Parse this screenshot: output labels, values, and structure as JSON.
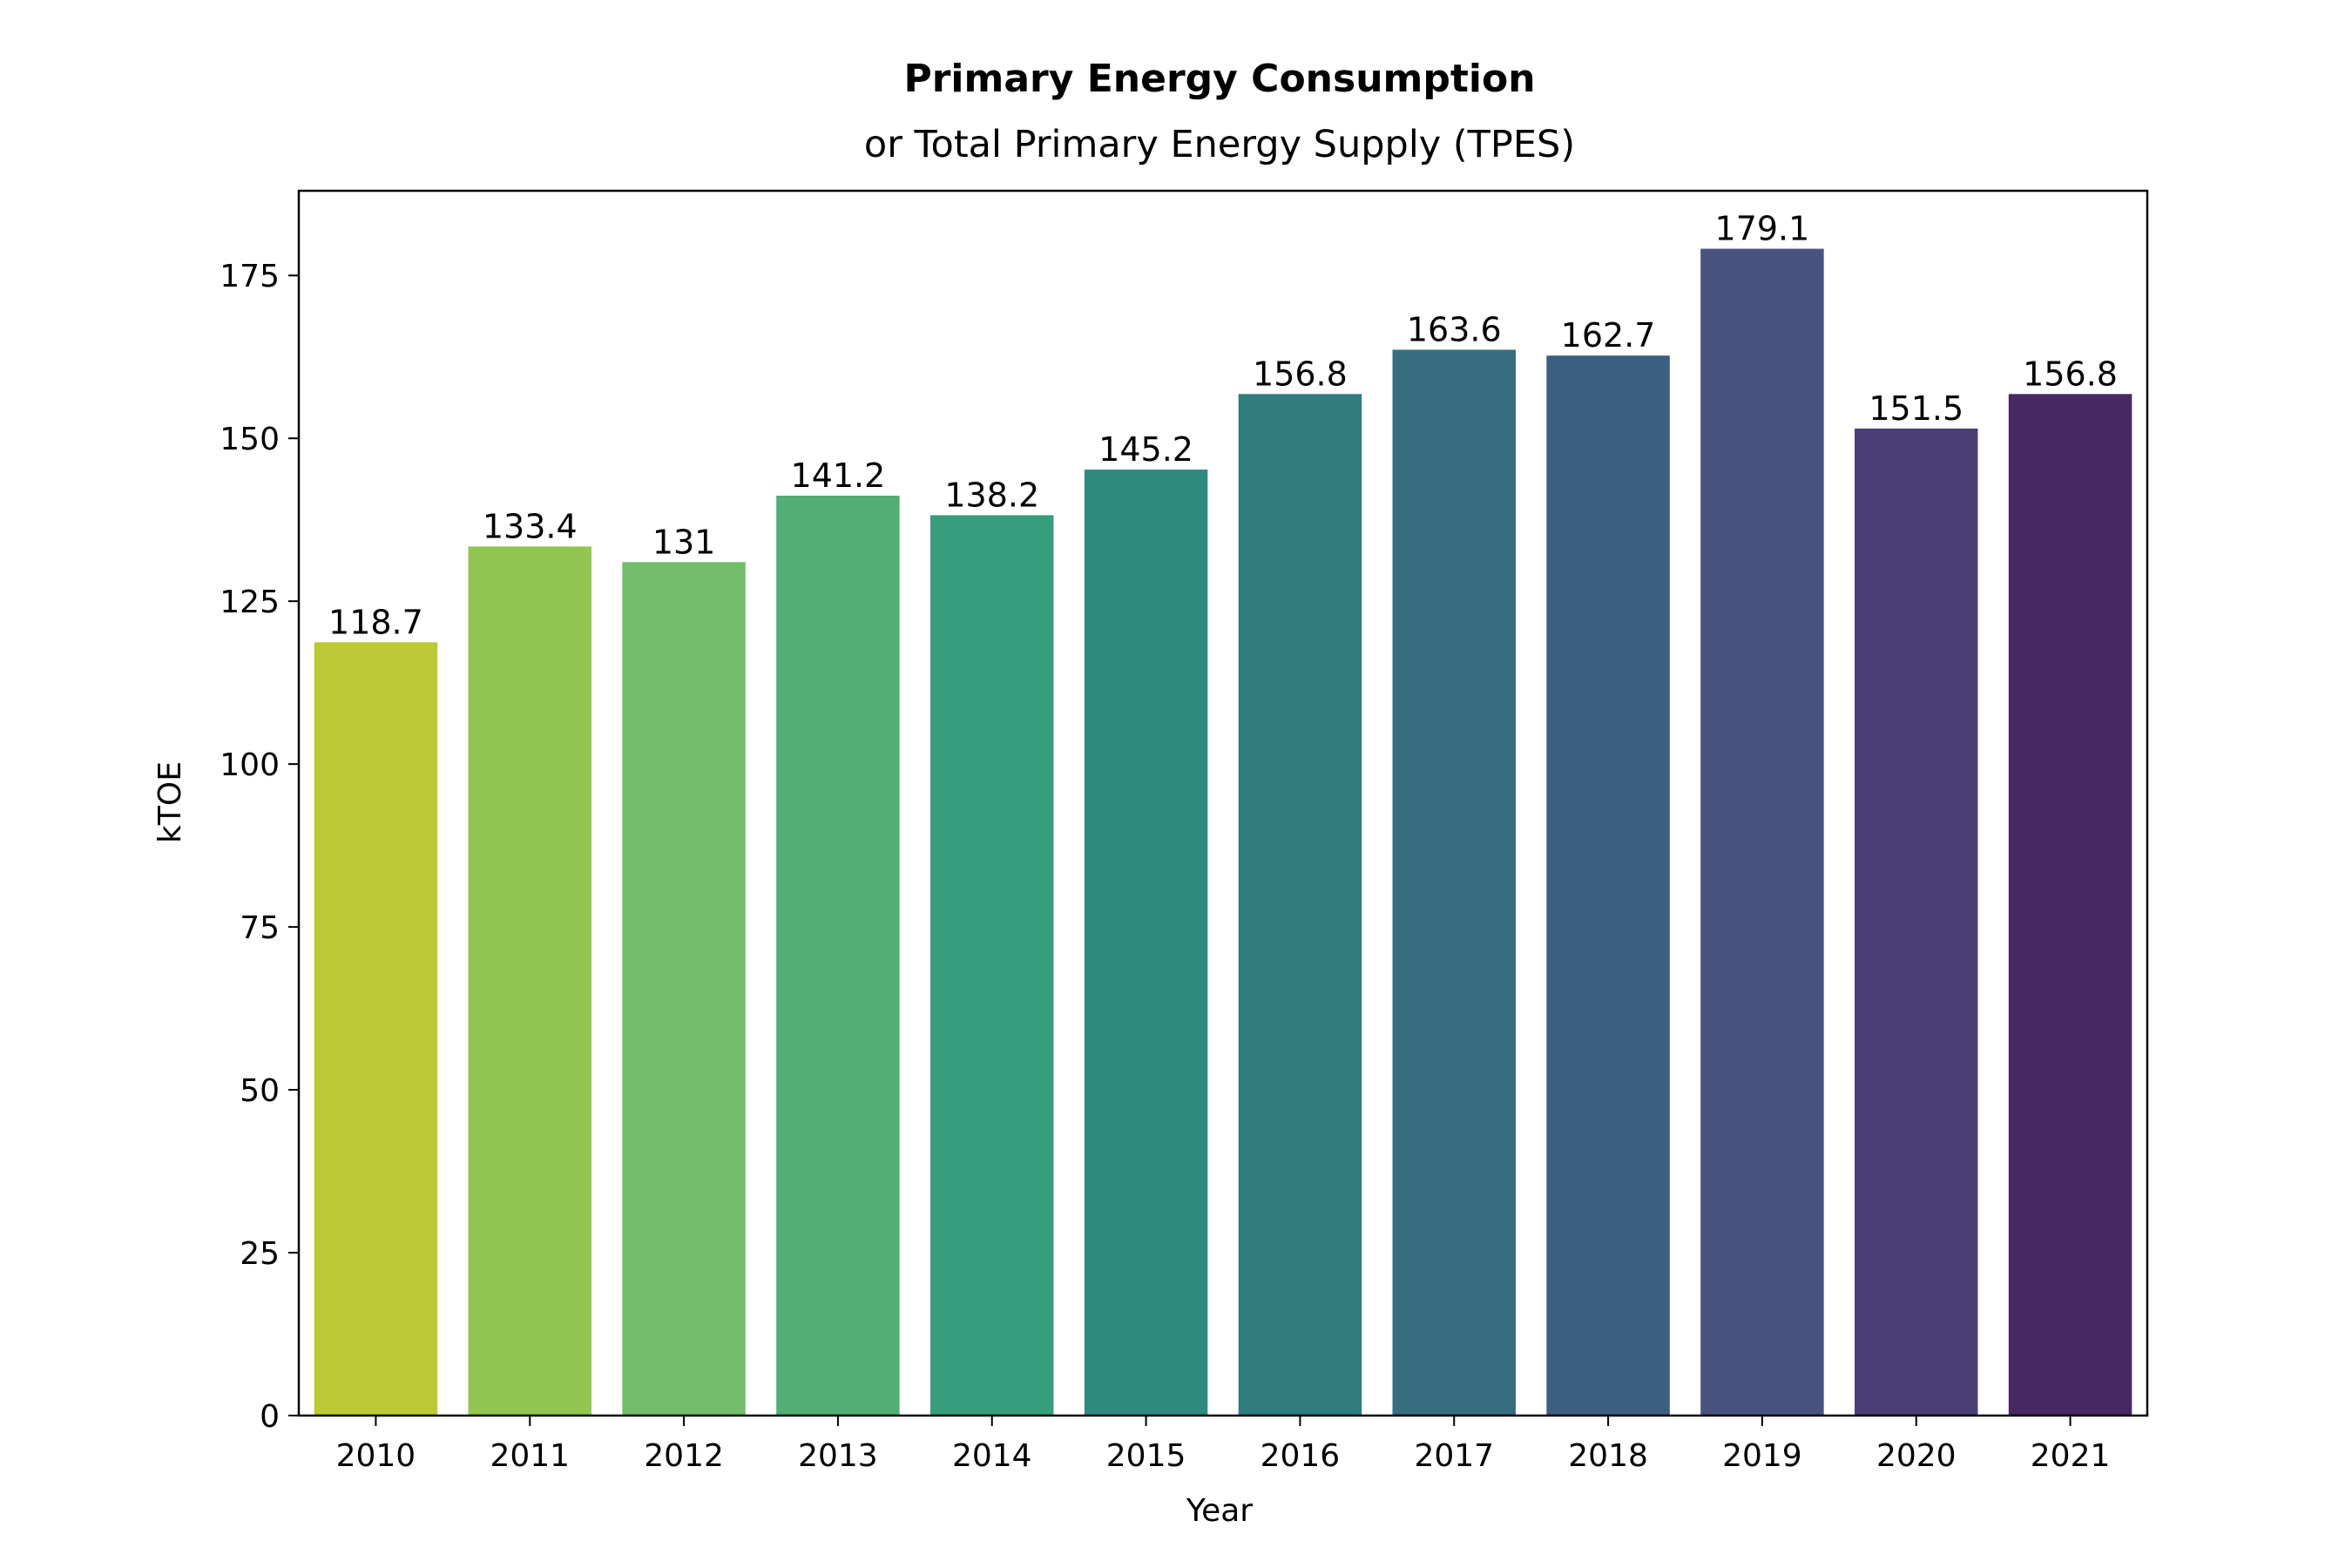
{
  "chart_data": {
    "type": "bar",
    "title": "Primary Energy Consumption",
    "subtitle": "or Total Primary Energy Supply (TPES)",
    "xlabel": "Year",
    "ylabel": "kTOE",
    "categories": [
      "2010",
      "2011",
      "2012",
      "2013",
      "2014",
      "2015",
      "2016",
      "2017",
      "2018",
      "2019",
      "2020",
      "2021"
    ],
    "values": [
      118.7,
      133.4,
      131,
      141.2,
      138.2,
      145.2,
      156.8,
      163.6,
      162.7,
      179.1,
      151.5,
      156.8
    ],
    "value_labels": [
      "118.7",
      "133.4",
      "131",
      "141.2",
      "138.2",
      "145.2",
      "156.8",
      "163.6",
      "162.7",
      "179.1",
      "151.5",
      "156.8"
    ],
    "colors": [
      "#bbc935",
      "#93c553",
      "#72bc6b",
      "#52ae75",
      "#389d7c",
      "#2e8a7e",
      "#307c7f",
      "#366e80",
      "#3c5f81",
      "#485380",
      "#4b3e77",
      "#472863"
    ],
    "ylim": [
      0,
      188
    ],
    "yticks": [
      0,
      25,
      50,
      75,
      100,
      125,
      150,
      175
    ],
    "grid": false,
    "legend": "none"
  }
}
